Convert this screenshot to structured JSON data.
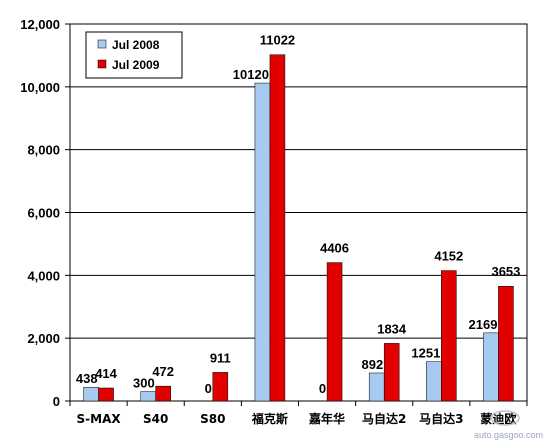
{
  "chart_data": {
    "type": "bar",
    "categories": [
      "S-MAX",
      "S40",
      "S80",
      "福克斯",
      "嘉年华",
      "马自达2",
      "马自达3",
      "蒙迪欧"
    ],
    "series": [
      {
        "name": "Jul 2008",
        "values": [
          438,
          300,
          0,
          10120,
          0,
          892,
          1251,
          2169
        ],
        "color": "#a6caf0"
      },
      {
        "name": "Jul 2009",
        "values": [
          414,
          472,
          911,
          11022,
          4406,
          1834,
          4152,
          3653
        ],
        "color": "#e00000"
      }
    ],
    "yticks": [
      "0",
      "2,000",
      "4,000",
      "6,000",
      "8,000",
      "10,000",
      "12,000"
    ],
    "ylim": [
      0,
      12000
    ],
    "grid": true,
    "legend": "top-left",
    "title": "",
    "xlabel": "",
    "ylabel": ""
  },
  "watermark": "auto.gasgoo.com"
}
